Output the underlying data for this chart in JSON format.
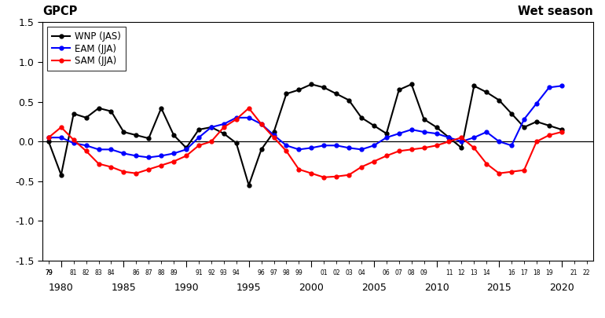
{
  "years": [
    1979,
    1980,
    1981,
    1982,
    1983,
    1984,
    1985,
    1986,
    1987,
    1988,
    1989,
    1990,
    1991,
    1992,
    1993,
    1994,
    1995,
    1996,
    1997,
    1998,
    1999,
    2000,
    2001,
    2002,
    2003,
    2004,
    2005,
    2006,
    2007,
    2008,
    2009,
    2010,
    2011,
    2012,
    2013,
    2014,
    2015,
    2016,
    2017,
    2018,
    2019,
    2020,
    2021,
    2022
  ],
  "WNP": [
    0.0,
    -0.42,
    0.35,
    0.3,
    0.42,
    0.38,
    0.12,
    0.08,
    0.04,
    0.42,
    0.08,
    -0.08,
    0.15,
    0.18,
    0.1,
    -0.02,
    -0.55,
    -0.1,
    0.12,
    0.6,
    0.65,
    0.72,
    0.68,
    0.6,
    0.52,
    0.3,
    0.2,
    0.1,
    0.65,
    0.72,
    0.28,
    0.18,
    0.05,
    -0.08,
    0.7,
    0.62,
    0.52,
    0.35,
    0.18,
    0.25,
    0.2,
    0.15,
    null,
    null
  ],
  "EAM": [
    0.05,
    0.05,
    -0.02,
    -0.05,
    -0.1,
    -0.1,
    -0.15,
    -0.18,
    -0.2,
    -0.18,
    -0.15,
    -0.1,
    0.05,
    0.18,
    0.22,
    0.3,
    0.3,
    0.22,
    0.08,
    -0.05,
    -0.1,
    -0.08,
    -0.05,
    -0.05,
    -0.08,
    -0.1,
    -0.05,
    0.05,
    0.1,
    0.15,
    0.12,
    0.1,
    0.05,
    0.0,
    0.05,
    0.12,
    0.0,
    -0.05,
    0.28,
    0.48,
    0.68,
    0.7,
    null,
    null
  ],
  "SAM": [
    0.05,
    0.18,
    0.02,
    -0.12,
    -0.28,
    -0.32,
    -0.38,
    -0.4,
    -0.35,
    -0.3,
    -0.25,
    -0.18,
    -0.05,
    0.0,
    0.18,
    0.28,
    0.42,
    0.22,
    0.05,
    -0.12,
    -0.35,
    -0.4,
    -0.45,
    -0.44,
    -0.42,
    -0.32,
    -0.25,
    -0.18,
    -0.12,
    -0.1,
    -0.08,
    -0.05,
    0.0,
    0.05,
    -0.08,
    -0.28,
    -0.4,
    -0.38,
    -0.36,
    0.0,
    0.08,
    0.12,
    null,
    null
  ],
  "ylim": [
    -1.5,
    1.5
  ],
  "yticks": [
    -1.5,
    -1.0,
    -0.5,
    0.0,
    0.5,
    1.0,
    1.5
  ],
  "xlim": [
    1978.5,
    2022.5
  ],
  "major_years": [
    1980,
    1985,
    1990,
    1995,
    2000,
    2005,
    2010,
    2015,
    2020
  ],
  "label_top_left": "GPCP",
  "label_top_right": "Wet season",
  "legend_labels": [
    "WNP (JAS)",
    "EAM (JJA)",
    "SAM (JJA)"
  ],
  "line_colors": [
    "#000000",
    "#0000ff",
    "#ff0000"
  ],
  "marker_size": 3.5,
  "line_width": 1.5,
  "background_color": "#ffffff"
}
